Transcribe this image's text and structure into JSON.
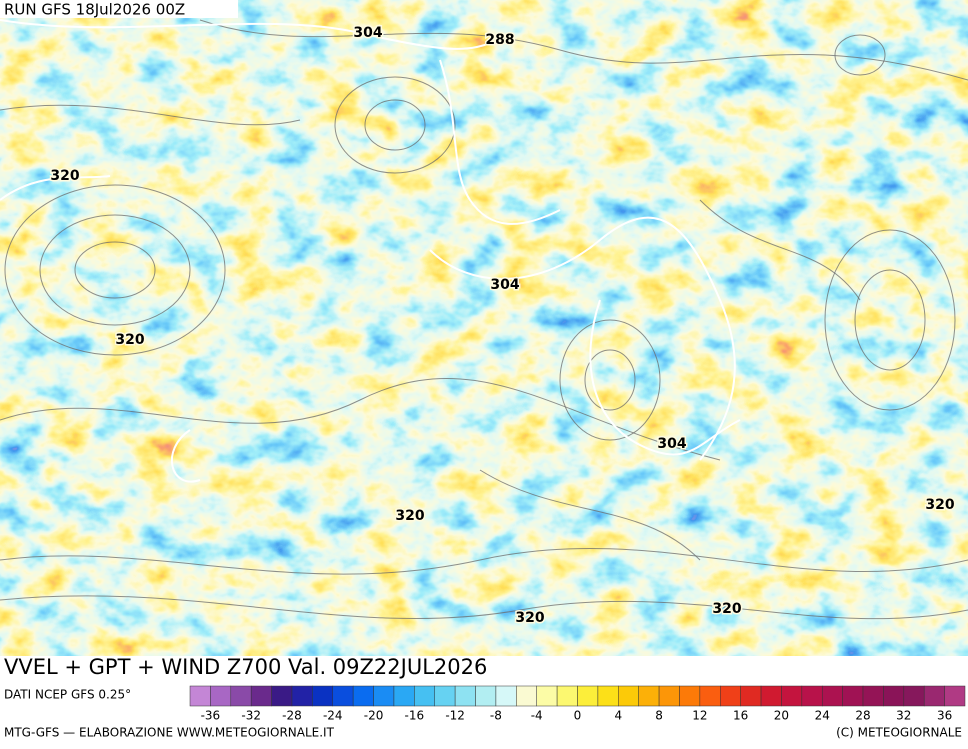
{
  "header": {
    "run": "RUN GFS 18Jul2026 00Z"
  },
  "map": {
    "title": "VVEL + GPT + WIND Z700 Val. 09Z22JUL2026",
    "contour_labels": [
      "304",
      "288",
      "320",
      "304",
      "320",
      "304",
      "320",
      "320",
      "320",
      "320"
    ]
  },
  "colorbar": {
    "source": "DATI NCEP GFS 0.25°",
    "colors": [
      "#c486d6",
      "#a867c4",
      "#8a4aa8",
      "#6a2a8c",
      "#3a1a86",
      "#2222a6",
      "#0a32c2",
      "#0a4ede",
      "#0a6cf0",
      "#1a8cf4",
      "#2aa8f4",
      "#46c0f2",
      "#66d2f2",
      "#8ee2f2",
      "#b2eef2",
      "#d6f8f8",
      "#fafad2",
      "#fcfca6",
      "#fcf870",
      "#fcee3a",
      "#fce018",
      "#fcca08",
      "#fcb008",
      "#fc9608",
      "#fc7a08",
      "#fa5e10",
      "#f04018",
      "#e02a22",
      "#d01a30",
      "#c4143e",
      "#b8124a",
      "#ac1250",
      "#a01254",
      "#941456",
      "#8a1458",
      "#86185c",
      "#9a2870",
      "#b03a84"
    ],
    "ticks": [
      -36,
      -32,
      -28,
      -24,
      -20,
      -16,
      -12,
      -8,
      -4,
      0,
      4,
      8,
      12,
      16,
      20,
      24,
      28,
      32,
      36
    ]
  },
  "footer": {
    "left": "MTG-GFS — ELABORAZIONE WWW.METEOGIORNALE.IT",
    "right": "(C) METEOGIORNALE"
  }
}
